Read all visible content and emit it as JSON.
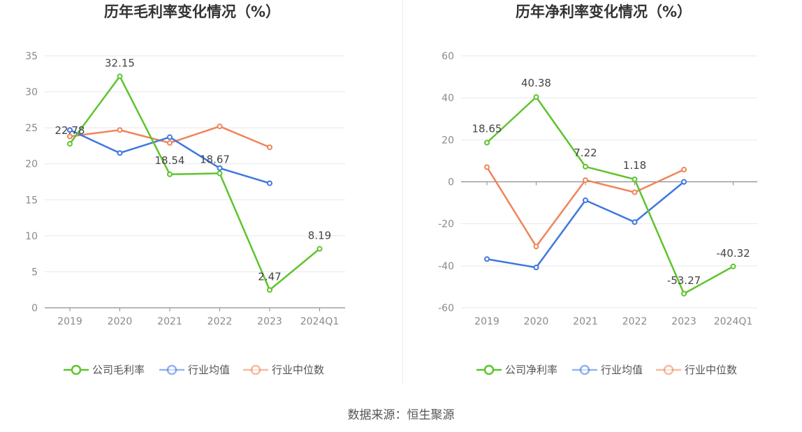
{
  "source": "数据来源：恒生聚源",
  "chart_data": [
    {
      "type": "line",
      "title": "历年毛利率变化情况（%）",
      "categories": [
        "2019",
        "2020",
        "2021",
        "2022",
        "2023",
        "2024Q1"
      ],
      "ylim": [
        0,
        35
      ],
      "yticks": [
        0,
        5,
        10,
        15,
        20,
        25,
        30,
        35
      ],
      "grid": true,
      "legend_position": "bottom",
      "series": [
        {
          "name": "公司毛利率",
          "color": "#5ec42d",
          "values": [
            22.78,
            32.15,
            18.54,
            18.67,
            2.47,
            8.19
          ],
          "labels": [
            "22.78",
            "32.15",
            "18.54",
            "18.67",
            "2.47",
            "8.19"
          ]
        },
        {
          "name": "行业均值",
          "color": "#3f77e0",
          "values": [
            24.7,
            21.5,
            23.7,
            19.4,
            17.3,
            null
          ]
        },
        {
          "name": "行业中位数",
          "color": "#f0845a",
          "values": [
            23.8,
            24.7,
            22.9,
            25.2,
            22.3,
            null
          ]
        }
      ]
    },
    {
      "type": "line",
      "title": "历年净利率变化情况（%）",
      "categories": [
        "2019",
        "2020",
        "2021",
        "2022",
        "2023",
        "2024Q1"
      ],
      "ylim": [
        -60,
        60
      ],
      "yticks": [
        -60,
        -40,
        -20,
        0,
        20,
        40,
        60
      ],
      "grid": true,
      "legend_position": "bottom",
      "series": [
        {
          "name": "公司净利率",
          "color": "#5ec42d",
          "values": [
            18.65,
            40.38,
            7.22,
            1.18,
            -53.27,
            -40.32
          ],
          "labels": [
            "18.65",
            "40.38",
            "7.22",
            "1.18",
            "-53.27",
            "-40.32"
          ]
        },
        {
          "name": "行业均值",
          "color": "#3f77e0",
          "values": [
            -36.8,
            -40.8,
            -8.8,
            -19.2,
            0.0,
            null
          ]
        },
        {
          "name": "行业中位数",
          "color": "#f0845a",
          "values": [
            7.0,
            -30.8,
            0.8,
            -5.0,
            5.8,
            null
          ]
        }
      ]
    }
  ]
}
